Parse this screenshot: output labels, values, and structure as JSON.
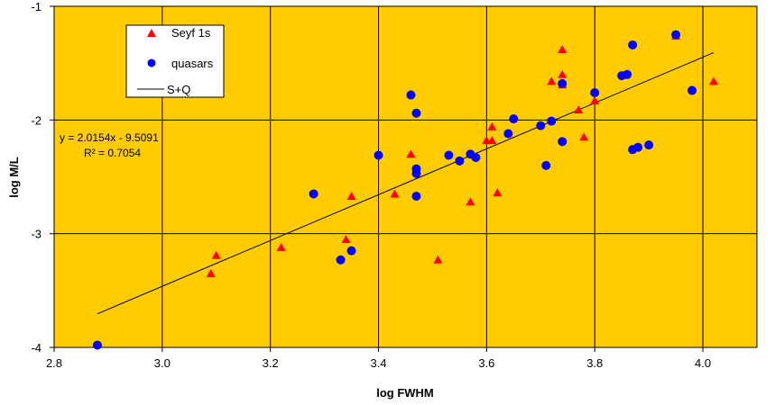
{
  "chart_data": {
    "type": "scatter",
    "xlabel": "log FWHM",
    "ylabel": "log M/L",
    "xlim": [
      2.8,
      4.1
    ],
    "ylim": [
      -4,
      -1
    ],
    "xticks": [
      "2.8",
      "3.0",
      "3.2",
      "3.4",
      "3.6",
      "3.8",
      "4.0"
    ],
    "yticks": [
      "-4",
      "-3",
      "-2",
      "-1"
    ],
    "grid": true,
    "background_color": "#FFCC00",
    "legend_position": "top-left",
    "series": [
      {
        "name": "Seyf 1s",
        "marker": "triangle",
        "color": "#FF0000",
        "points": [
          [
            3.09,
            -3.35
          ],
          [
            3.1,
            -3.19
          ],
          [
            3.22,
            -3.12
          ],
          [
            3.34,
            -3.05
          ],
          [
            3.35,
            -2.67
          ],
          [
            3.43,
            -2.65
          ],
          [
            3.46,
            -2.3
          ],
          [
            3.51,
            -3.23
          ],
          [
            3.57,
            -2.72
          ],
          [
            3.6,
            -2.18
          ],
          [
            3.61,
            -2.06
          ],
          [
            3.61,
            -2.18
          ],
          [
            3.62,
            -2.64
          ],
          [
            3.72,
            -1.66
          ],
          [
            3.74,
            -1.69
          ],
          [
            3.74,
            -1.6
          ],
          [
            3.74,
            -1.38
          ],
          [
            3.77,
            -1.91
          ],
          [
            3.78,
            -2.15
          ],
          [
            3.8,
            -1.83
          ],
          [
            3.95,
            -1.26
          ],
          [
            4.02,
            -1.66
          ]
        ]
      },
      {
        "name": "quasars",
        "marker": "circle",
        "color": "#0000FF",
        "points": [
          [
            2.88,
            -3.98
          ],
          [
            3.28,
            -2.65
          ],
          [
            3.33,
            -3.23
          ],
          [
            3.35,
            -3.15
          ],
          [
            3.4,
            -2.31
          ],
          [
            3.46,
            -1.78
          ],
          [
            3.47,
            -1.94
          ],
          [
            3.47,
            -2.43
          ],
          [
            3.47,
            -2.47
          ],
          [
            3.47,
            -2.67
          ],
          [
            3.53,
            -2.31
          ],
          [
            3.55,
            -2.36
          ],
          [
            3.57,
            -2.3
          ],
          [
            3.58,
            -2.33
          ],
          [
            3.64,
            -2.12
          ],
          [
            3.65,
            -1.99
          ],
          [
            3.7,
            -2.05
          ],
          [
            3.71,
            -2.4
          ],
          [
            3.72,
            -2.01
          ],
          [
            3.74,
            -1.68
          ],
          [
            3.74,
            -2.19
          ],
          [
            3.8,
            -1.76
          ],
          [
            3.85,
            -1.61
          ],
          [
            3.86,
            -1.6
          ],
          [
            3.87,
            -1.34
          ],
          [
            3.87,
            -2.26
          ],
          [
            3.88,
            -2.24
          ],
          [
            3.9,
            -2.22
          ],
          [
            3.95,
            -1.25
          ],
          [
            3.98,
            -1.74
          ]
        ]
      },
      {
        "name": "S+Q",
        "type": "line",
        "color": "#000000",
        "x": [
          2.88,
          4.02
        ],
        "slope": 2.0154,
        "intercept": -9.5091
      }
    ],
    "annotations": [
      "y = 2.0154x - 9.5091",
      "R² = 0.7054"
    ]
  }
}
